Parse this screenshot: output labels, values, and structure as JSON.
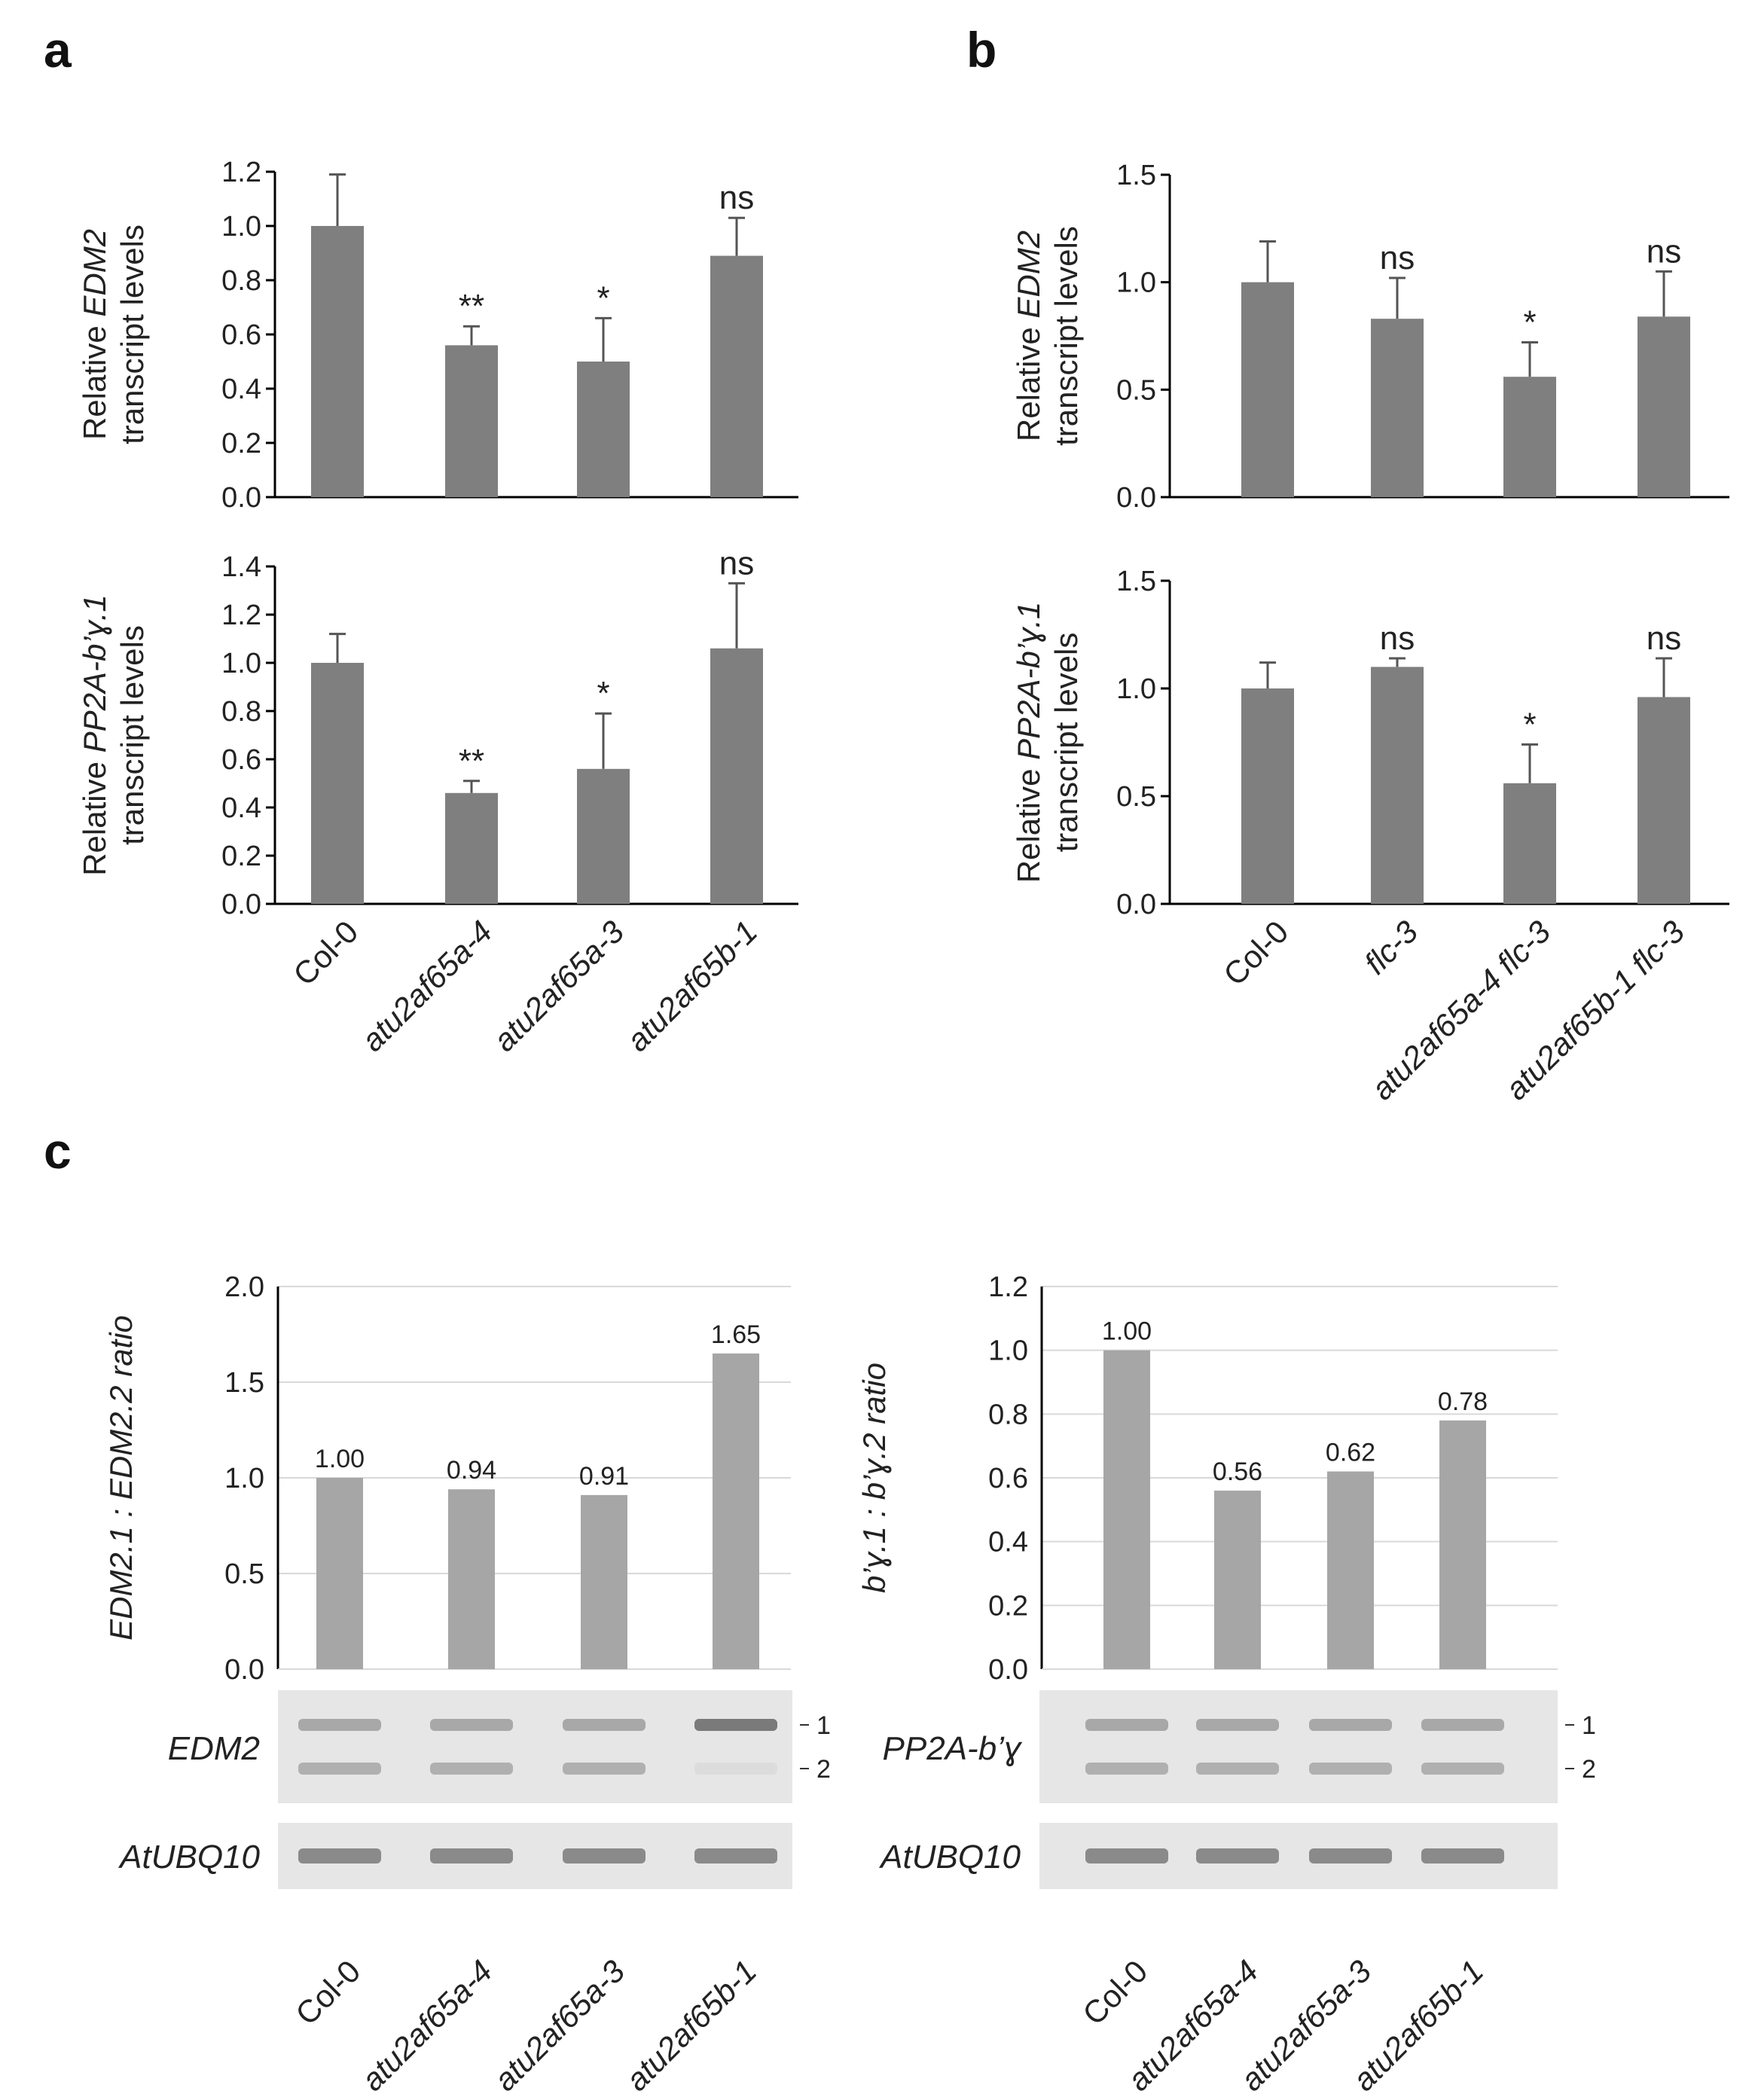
{
  "panels": {
    "a": "a",
    "b": "b",
    "c": "c"
  },
  "colors": {
    "bar_dark": "#7f7f7f",
    "bar_light": "#a6a6a6",
    "grid": "#d9d9d9",
    "axis": "#000000"
  },
  "chart_data": [
    {
      "id": "a-top",
      "type": "bar",
      "panel": "a",
      "ylabel_pre": "Relative ",
      "ylabel_gene": "EDM2",
      "ylabel_line2": "transcript levels",
      "ylim": [
        0,
        1.2
      ],
      "yticks": [
        "0.0",
        "0.2",
        "0.4",
        "0.6",
        "0.8",
        "1.0",
        "1.2"
      ],
      "categories": [
        "Col-0",
        "atu2af65a-4",
        "atu2af65a-3",
        "atu2af65b-1"
      ],
      "values": [
        1.0,
        0.56,
        0.5,
        0.89
      ],
      "errors": [
        0.19,
        0.07,
        0.16,
        0.14
      ],
      "significance": [
        "",
        "**",
        "*",
        "ns"
      ],
      "grid": false,
      "legend": "none"
    },
    {
      "id": "a-bottom",
      "type": "bar",
      "panel": "a",
      "ylabel_pre": "Relative ",
      "ylabel_gene": "PP2A-b’ɣ.1",
      "ylabel_line2": "transcript levels",
      "ylim": [
        0,
        1.4
      ],
      "yticks": [
        "0.0",
        "0.2",
        "0.4",
        "0.6",
        "0.8",
        "1.0",
        "1.2",
        "1.4"
      ],
      "categories": [
        "Col-0",
        "atu2af65a-4",
        "atu2af65a-3",
        "atu2af65b-1"
      ],
      "values": [
        1.0,
        0.46,
        0.56,
        1.06
      ],
      "errors": [
        0.12,
        0.05,
        0.23,
        0.27
      ],
      "significance": [
        "",
        "**",
        "*",
        "ns"
      ],
      "grid": false,
      "legend": "none"
    },
    {
      "id": "b-top",
      "type": "bar",
      "panel": "b",
      "ylabel_pre": "Relative ",
      "ylabel_gene": "EDM2",
      "ylabel_line2": "transcript levels",
      "ylim": [
        0,
        1.5
      ],
      "yticks": [
        "0.0",
        "0.5",
        "1.0",
        "1.5"
      ],
      "categories": [
        "Col-0",
        "flc-3",
        "atu2af65a-4 flc-3",
        "atu2af65b-1 flc-3"
      ],
      "values": [
        1.0,
        0.83,
        0.56,
        0.84
      ],
      "errors": [
        0.19,
        0.19,
        0.16,
        0.21
      ],
      "significance": [
        "",
        "ns",
        "*",
        "ns"
      ],
      "grid": false,
      "legend": "none"
    },
    {
      "id": "b-bottom",
      "type": "bar",
      "panel": "b",
      "ylabel_pre": "Relative ",
      "ylabel_gene": "PP2A-b’ɣ.1",
      "ylabel_line2": "transcript levels",
      "ylim": [
        0,
        1.5
      ],
      "yticks": [
        "0.0",
        "0.5",
        "1.0",
        "1.5"
      ],
      "categories": [
        "Col-0",
        "flc-3",
        "atu2af65a-4 flc-3",
        "atu2af65b-1 flc-3"
      ],
      "values": [
        1.0,
        1.1,
        0.56,
        0.96
      ],
      "errors": [
        0.12,
        0.04,
        0.18,
        0.18
      ],
      "significance": [
        "",
        "ns",
        "*",
        "ns"
      ],
      "grid": false,
      "legend": "none"
    },
    {
      "id": "c-left",
      "type": "bar",
      "panel": "c",
      "ylabel": "EDM2.1 : EDM2.2 ratio",
      "ylim": [
        0,
        2.0
      ],
      "yticks": [
        "0.0",
        "0.5",
        "1.0",
        "1.5",
        "2.0"
      ],
      "categories": [
        "Col-0",
        "atu2af65a-4",
        "atu2af65a-3",
        "atu2af65b-1"
      ],
      "values": [
        1.0,
        0.94,
        0.91,
        1.65
      ],
      "value_labels": [
        "1.00",
        "0.94",
        "0.91",
        "1.65"
      ],
      "grid": true,
      "legend": "none"
    },
    {
      "id": "c-right",
      "type": "bar",
      "panel": "c",
      "ylabel": "b’ɣ.1 : b’ɣ.2 ratio",
      "ylim": [
        0,
        1.2
      ],
      "yticks": [
        "0.0",
        "0.2",
        "0.4",
        "0.6",
        "0.8",
        "1.0",
        "1.2"
      ],
      "categories": [
        "Col-0",
        "atu2af65a-4",
        "atu2af65a-3",
        "atu2af65b-1"
      ],
      "values": [
        1.0,
        0.56,
        0.62,
        0.78
      ],
      "value_labels": [
        "1.00",
        "0.56",
        "0.62",
        "0.78"
      ],
      "grid": true,
      "legend": "none"
    }
  ],
  "gels": {
    "left": {
      "target_label": "EDM2",
      "control_label": "AtUBQ10",
      "band_labels": [
        "1",
        "2"
      ]
    },
    "right": {
      "target_label": "PP2A-b’ɣ",
      "control_label": "AtUBQ10",
      "band_labels": [
        "1",
        "2"
      ]
    }
  }
}
